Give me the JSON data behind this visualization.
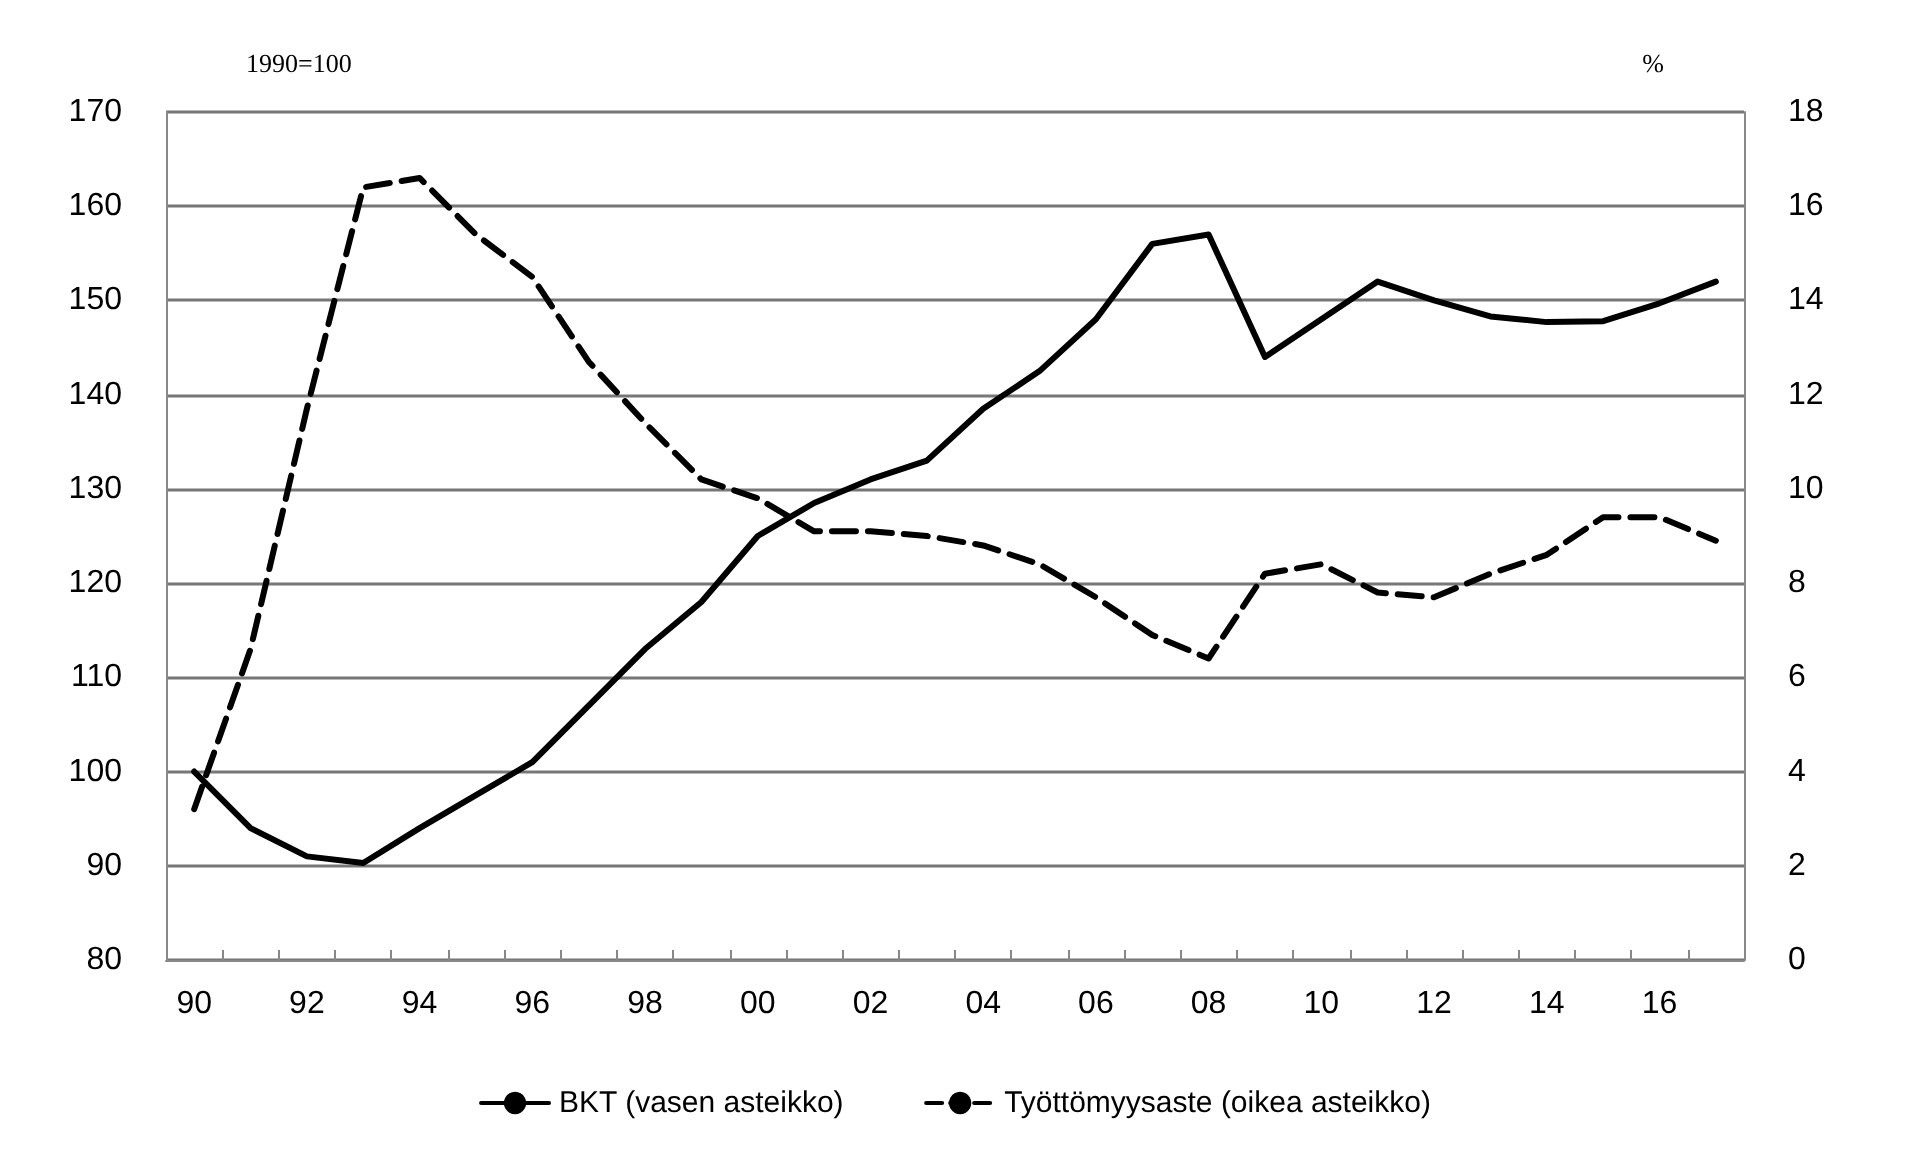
{
  "chart_data": {
    "type": "line",
    "ylabel": "1990=100",
    "y2label": "%",
    "categories": [
      "90",
      null,
      "92",
      null,
      "94",
      null,
      "96",
      null,
      "98",
      null,
      "00",
      null,
      "02",
      null,
      "04",
      null,
      "06",
      null,
      "08",
      null,
      "10",
      null,
      "12",
      null,
      "14",
      null,
      "16",
      null
    ],
    "series": [
      {
        "name": "BKT (vasen asteikko)",
        "color": "#000000",
        "line_style": "solid",
        "values": [
          100,
          94,
          91,
          90.3,
          94,
          97.5,
          101,
          107,
          113,
          118,
          125,
          128.5,
          131,
          133,
          138.5,
          142.5,
          148,
          156,
          157,
          144,
          148,
          152,
          150,
          148.3,
          147.7,
          147.8,
          149.7,
          152
        ]
      },
      {
        "name": "Työttömyysaste (oikea asteikko)",
        "color": "#000000",
        "line_style": "dashed",
        "axis": "y2",
        "values": [
          3.2,
          6.6,
          11.7,
          16.4,
          16.6,
          15.4,
          14.5,
          12.7,
          11.4,
          10.2,
          9.8,
          9.1,
          9.1,
          9.0,
          8.8,
          8.4,
          7.7,
          6.9,
          6.4,
          8.2,
          8.4,
          7.8,
          7.7,
          8.2,
          8.6,
          9.4,
          9.4,
          8.9
        ]
      }
    ],
    "ylim": [
      80,
      170
    ],
    "yticks": [
      80,
      90,
      100,
      110,
      120,
      130,
      140,
      150,
      160,
      170
    ],
    "y2lim": [
      0,
      18
    ],
    "y2ticks": [
      0,
      2,
      4,
      6,
      8,
      10,
      12,
      14,
      16,
      18
    ],
    "grid": "y",
    "legend": "bottom",
    "marker": "none"
  }
}
